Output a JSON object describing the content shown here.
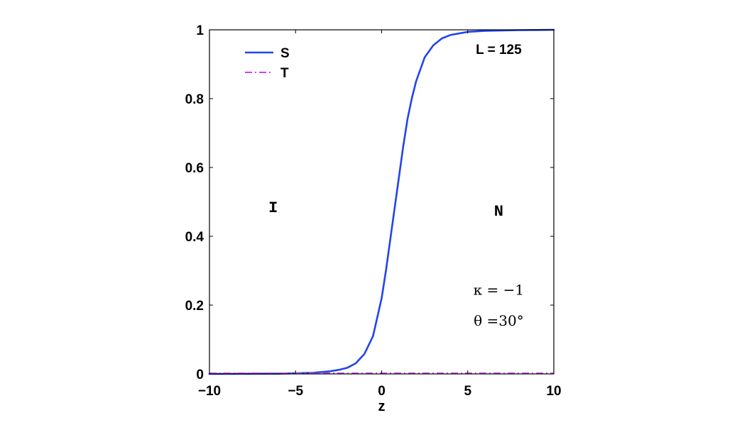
{
  "chart_data": {
    "type": "line",
    "xlabel": "z",
    "ylabel": "",
    "xlim": [
      -10,
      10
    ],
    "ylim": [
      0,
      1
    ],
    "xticks": [
      -10,
      -5,
      0,
      5,
      10
    ],
    "xtick_labels": [
      "−10",
      "−5",
      "0",
      "5",
      "10"
    ],
    "yticks": [
      0,
      0.2,
      0.4,
      0.6,
      0.8,
      1
    ],
    "ytick_labels": [
      "0",
      "0.2",
      "0.4",
      "0.6",
      "0.8",
      "1"
    ],
    "grid": false,
    "legend_position": "top-left",
    "series": [
      {
        "name": "S",
        "color": "#2244ee",
        "style": "solid",
        "x": [
          -10,
          -6,
          -4,
          -3,
          -2.5,
          -2,
          -1.5,
          -1,
          -0.5,
          0,
          0.25,
          0.5,
          0.75,
          1,
          1.25,
          1.5,
          1.75,
          2,
          2.5,
          3,
          3.5,
          4,
          5,
          6,
          7,
          8,
          10
        ],
        "y": [
          0.0,
          0.0007,
          0.0033,
          0.0077,
          0.0117,
          0.0177,
          0.031,
          0.058,
          0.11,
          0.22,
          0.3,
          0.39,
          0.48,
          0.57,
          0.66,
          0.74,
          0.8,
          0.85,
          0.92,
          0.955,
          0.975,
          0.985,
          0.994,
          0.997,
          0.998,
          0.999,
          1.0
        ]
      },
      {
        "name": "T",
        "color": "#cc44ee",
        "style": "dashdot",
        "x": [
          -10,
          10
        ],
        "y": [
          0.002,
          0.002
        ]
      }
    ],
    "annotations": [
      {
        "id": "length",
        "text": "L = 125",
        "x": 6.8,
        "y": 0.93,
        "style": "sans"
      },
      {
        "id": "phase_i",
        "text": "I",
        "x": -6.3,
        "y": 0.47,
        "style": "mono"
      },
      {
        "id": "phase_n",
        "text": "N",
        "x": 6.8,
        "y": 0.46,
        "style": "mono"
      },
      {
        "id": "kappa",
        "text": "κ = −1",
        "x": 6.8,
        "y": 0.23,
        "style": "greek"
      },
      {
        "id": "theta",
        "text": "θ =30°",
        "x": 6.8,
        "y": 0.14,
        "style": "greek"
      }
    ]
  }
}
